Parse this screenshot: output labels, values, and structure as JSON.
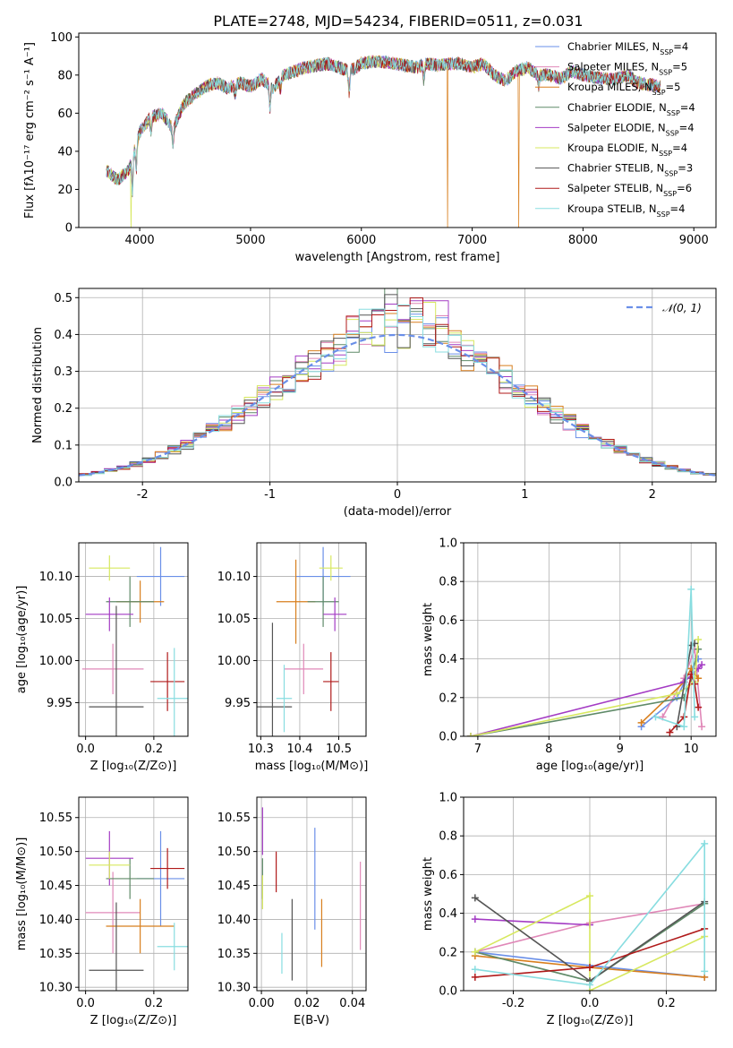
{
  "title": "PLATE=2748, MJD=54234, FIBERID=0511, z=0.031",
  "models": [
    {
      "name": "Chabrier MILES",
      "nssp": "4",
      "color": "#6a8fe8"
    },
    {
      "name": "Salpeter MILES",
      "nssp": "5",
      "color": "#e088b8"
    },
    {
      "name": "Kroupa MILES",
      "nssp": "5",
      "color": "#d87f1e"
    },
    {
      "name": "Chabrier ELODIE",
      "nssp": "4",
      "color": "#5f8a68"
    },
    {
      "name": "Salpeter ELODIE",
      "nssp": "4",
      "color": "#a43cc4"
    },
    {
      "name": "Kroupa ELODIE",
      "nssp": "4",
      "color": "#d7e85f"
    },
    {
      "name": "Chabrier STELIB",
      "nssp": "3",
      "color": "#555555"
    },
    {
      "name": "Salpeter STELIB",
      "nssp": "6",
      "color": "#b01a1a"
    },
    {
      "name": "Kroupa STELIB",
      "nssp": "4",
      "color": "#88dde0"
    }
  ],
  "legend_nssp_label": "N",
  "legend_nssp_sub": "SSP",
  "chart_data": [
    {
      "id": "spectrum",
      "type": "line",
      "xlabel": "wavelength [Angstrom, rest frame]",
      "ylabel": "Flux [fλ10⁻¹⁷ erg cm⁻² s⁻¹ A⁻¹]",
      "xlim": [
        3450,
        9200
      ],
      "ylim": [
        0,
        102
      ],
      "xticks": [
        4000,
        5000,
        6000,
        7000,
        8000,
        9000
      ],
      "yticks": [
        0,
        20,
        40,
        60,
        80,
        100
      ],
      "x_range_data": [
        3700,
        8700
      ],
      "continuum": [
        [
          3700,
          30
        ],
        [
          3800,
          25
        ],
        [
          3900,
          30
        ],
        [
          4000,
          50
        ],
        [
          4100,
          58
        ],
        [
          4200,
          60
        ],
        [
          4300,
          52
        ],
        [
          4400,
          65
        ],
        [
          4500,
          70
        ],
        [
          4600,
          74
        ],
        [
          4700,
          76
        ],
        [
          4800,
          73
        ],
        [
          4900,
          76
        ],
        [
          5000,
          74
        ],
        [
          5100,
          78
        ],
        [
          5200,
          73
        ],
        [
          5300,
          80
        ],
        [
          5400,
          82
        ],
        [
          5500,
          84
        ],
        [
          5600,
          85
        ],
        [
          5700,
          86
        ],
        [
          5800,
          84
        ],
        [
          5900,
          82
        ],
        [
          6000,
          86
        ],
        [
          6100,
          87
        ],
        [
          6200,
          87
        ],
        [
          6300,
          86
        ],
        [
          6400,
          85
        ],
        [
          6500,
          84
        ],
        [
          6600,
          86
        ],
        [
          6700,
          85
        ],
        [
          6800,
          86
        ],
        [
          6900,
          86
        ],
        [
          7000,
          84
        ],
        [
          7100,
          86
        ],
        [
          7200,
          80
        ],
        [
          7300,
          77
        ],
        [
          7400,
          82
        ],
        [
          7500,
          84
        ],
        [
          7600,
          80
        ],
        [
          7700,
          80
        ],
        [
          7800,
          78
        ],
        [
          7900,
          82
        ],
        [
          8000,
          80
        ],
        [
          8100,
          79
        ],
        [
          8200,
          78
        ],
        [
          8300,
          78
        ],
        [
          8400,
          80
        ],
        [
          8500,
          76
        ],
        [
          8600,
          75
        ],
        [
          8700,
          74
        ]
      ],
      "dropouts": [
        {
          "x": 3920,
          "model": "Kroupa ELODIE"
        },
        {
          "x": 6780,
          "model": "Kroupa MILES"
        },
        {
          "x": 7420,
          "model": "Kroupa MILES"
        }
      ]
    },
    {
      "id": "residuals",
      "type": "histogram",
      "xlabel": "(data-model)/error",
      "ylabel": "Normed distribution",
      "xlim": [
        -2.5,
        2.5
      ],
      "ylim": [
        0,
        0.525
      ],
      "xticks": [
        -2,
        -1,
        0,
        1,
        2
      ],
      "yticks": [
        0.0,
        0.1,
        0.2,
        0.3,
        0.4,
        0.5
      ],
      "bin_edges_start": -2.5,
      "bin_width": 0.1,
      "n_bins": 50,
      "reference_curve": {
        "label": "𝒩(0, 1)",
        "mean": 0,
        "sigma": 1,
        "color": "#6a8fe8"
      }
    },
    {
      "id": "age-vs-Z",
      "type": "errorbar",
      "xlabel": "Z [log₁₀(Z/Z⊙)]",
      "ylabel": "age  [log₁₀(age/yr)]",
      "xlim": [
        -0.02,
        0.3
      ],
      "ylim": [
        9.91,
        10.14
      ],
      "xticks": [
        0.0,
        0.2
      ],
      "yticks": [
        9.95,
        10.0,
        10.05,
        10.1
      ],
      "points": [
        {
          "model": "Chabrier MILES",
          "x": 0.22,
          "xerr": 0.07,
          "y": 10.1,
          "yerr": 0.035
        },
        {
          "model": "Salpeter MILES",
          "x": 0.08,
          "xerr": 0.09,
          "y": 9.99,
          "yerr": 0.03
        },
        {
          "model": "Kroupa MILES",
          "x": 0.16,
          "xerr": 0.07,
          "y": 10.07,
          "yerr": 0.025
        },
        {
          "model": "Chabrier ELODIE",
          "x": 0.13,
          "xerr": 0.07,
          "y": 10.07,
          "yerr": 0.03
        },
        {
          "model": "Salpeter ELODIE",
          "x": 0.07,
          "xerr": 0.07,
          "y": 10.055,
          "yerr": 0.02
        },
        {
          "model": "Kroupa ELODIE",
          "x": 0.07,
          "xerr": 0.06,
          "y": 10.11,
          "yerr": 0.015
        },
        {
          "model": "Chabrier STELIB",
          "x": 0.09,
          "xerr": 0.08,
          "y": 9.945,
          "yerr": 0.12
        },
        {
          "model": "Salpeter STELIB",
          "x": 0.24,
          "xerr": 0.05,
          "y": 9.975,
          "yerr": 0.035
        },
        {
          "model": "Kroupa STELIB",
          "x": 0.26,
          "xerr": 0.05,
          "y": 9.955,
          "yerr": 0.06
        }
      ]
    },
    {
      "id": "age-vs-mass",
      "type": "errorbar",
      "xlabel": "mass [log₁₀(M/M⊙)]",
      "ylabel": "",
      "xlim": [
        10.29,
        10.57
      ],
      "ylim": [
        9.91,
        10.14
      ],
      "xticks": [
        10.3,
        10.4,
        10.5
      ],
      "yticks": [
        9.95,
        10.0,
        10.05,
        10.1
      ],
      "points": [
        {
          "model": "Chabrier MILES",
          "x": 10.46,
          "xerr": 0.07,
          "y": 10.1,
          "yerr": 0.035
        },
        {
          "model": "Salpeter MILES",
          "x": 10.41,
          "xerr": 0.05,
          "y": 9.99,
          "yerr": 0.03
        },
        {
          "model": "Kroupa MILES",
          "x": 10.39,
          "xerr": 0.05,
          "y": 10.07,
          "yerr": 0.05
        },
        {
          "model": "Chabrier ELODIE",
          "x": 10.46,
          "xerr": 0.04,
          "y": 10.07,
          "yerr": 0.03
        },
        {
          "model": "Salpeter ELODIE",
          "x": 10.49,
          "xerr": 0.03,
          "y": 10.055,
          "yerr": 0.02
        },
        {
          "model": "Kroupa ELODIE",
          "x": 10.48,
          "xerr": 0.03,
          "y": 10.11,
          "yerr": 0.015
        },
        {
          "model": "Chabrier STELIB",
          "x": 10.33,
          "xerr": 0.05,
          "y": 9.945,
          "yerr": 0.1
        },
        {
          "model": "Salpeter STELIB",
          "x": 10.48,
          "xerr": 0.02,
          "y": 9.975,
          "yerr": 0.035
        },
        {
          "model": "Kroupa STELIB",
          "x": 10.36,
          "xerr": 0.02,
          "y": 9.955,
          "yerr": 0.04
        }
      ]
    },
    {
      "id": "weight-vs-age",
      "type": "line",
      "xlabel": "age  [log₁₀(age/yr)]",
      "ylabel": "mass weight",
      "xlim": [
        6.8,
        10.35
      ],
      "ylim": [
        0,
        1.0
      ],
      "xticks": [
        7,
        8,
        9,
        10
      ],
      "yticks": [
        0.0,
        0.2,
        0.4,
        0.6,
        0.8,
        1.0
      ],
      "series": [
        {
          "model": "Chabrier MILES",
          "x": [
            9.3,
            9.8,
            10.0,
            10.1
          ],
          "y": [
            0.05,
            0.2,
            0.35,
            0.4
          ]
        },
        {
          "model": "Salpeter MILES",
          "x": [
            9.6,
            9.9,
            10.05,
            10.15
          ],
          "y": [
            0.1,
            0.3,
            0.45,
            0.05
          ]
        },
        {
          "model": "Kroupa MILES",
          "x": [
            9.3,
            9.9,
            10.0,
            10.1
          ],
          "y": [
            0.07,
            0.28,
            0.35,
            0.3
          ]
        },
        {
          "model": "Chabrier ELODIE",
          "x": [
            6.9,
            9.9,
            10.0,
            10.1
          ],
          "y": [
            0.0,
            0.2,
            0.3,
            0.45
          ]
        },
        {
          "model": "Salpeter ELODIE",
          "x": [
            6.9,
            9.9,
            10.1,
            10.15
          ],
          "y": [
            0.0,
            0.28,
            0.35,
            0.37
          ]
        },
        {
          "model": "Kroupa ELODIE",
          "x": [
            6.9,
            9.8,
            10.05,
            10.1
          ],
          "y": [
            0.0,
            0.22,
            0.28,
            0.5
          ]
        },
        {
          "model": "Chabrier STELIB",
          "x": [
            9.8,
            10.0,
            10.05
          ],
          "y": [
            0.05,
            0.47,
            0.48
          ]
        },
        {
          "model": "Salpeter STELIB",
          "x": [
            9.7,
            9.9,
            10.0,
            10.05,
            10.1
          ],
          "y": [
            0.02,
            0.1,
            0.32,
            0.27,
            0.15
          ]
        },
        {
          "model": "Kroupa STELIB",
          "x": [
            9.5,
            9.9,
            10.0,
            10.05
          ],
          "y": [
            0.1,
            0.05,
            0.76,
            0.1
          ]
        }
      ]
    },
    {
      "id": "mass-vs-Z",
      "type": "errorbar",
      "xlabel": "Z [log₁₀(Z/Z⊙)]",
      "ylabel": "mass [log₁₀(M/M⊙)]",
      "xlim": [
        -0.02,
        0.3
      ],
      "ylim": [
        10.295,
        10.58
      ],
      "xticks": [
        0.0,
        0.2
      ],
      "yticks": [
        10.3,
        10.35,
        10.4,
        10.45,
        10.5,
        10.55
      ],
      "points": [
        {
          "model": "Chabrier MILES",
          "x": 0.22,
          "xerr": 0.07,
          "y": 10.46,
          "yerr": 0.07
        },
        {
          "model": "Salpeter MILES",
          "x": 0.08,
          "xerr": 0.08,
          "y": 10.41,
          "yerr": 0.06
        },
        {
          "model": "Kroupa MILES",
          "x": 0.16,
          "xerr": 0.1,
          "y": 10.39,
          "yerr": 0.04
        },
        {
          "model": "Chabrier ELODIE",
          "x": 0.13,
          "xerr": 0.07,
          "y": 10.46,
          "yerr": 0.03
        },
        {
          "model": "Salpeter ELODIE",
          "x": 0.07,
          "xerr": 0.07,
          "y": 10.49,
          "yerr": 0.04
        },
        {
          "model": "Kroupa ELODIE",
          "x": 0.07,
          "xerr": 0.06,
          "y": 10.48,
          "yerr": 0.02
        },
        {
          "model": "Chabrier STELIB",
          "x": 0.09,
          "xerr": 0.08,
          "y": 10.325,
          "yerr": 0.1
        },
        {
          "model": "Salpeter STELIB",
          "x": 0.24,
          "xerr": 0.05,
          "y": 10.475,
          "yerr": 0.03
        },
        {
          "model": "Kroupa STELIB",
          "x": 0.26,
          "xerr": 0.05,
          "y": 10.36,
          "yerr": 0.035
        }
      ]
    },
    {
      "id": "mass-vs-EBV",
      "type": "errorbar",
      "xlabel": "E(B-V)",
      "ylabel": "",
      "xlim": [
        -0.002,
        0.046
      ],
      "ylim": [
        10.295,
        10.58
      ],
      "xticks": [
        0.0,
        0.02,
        0.04
      ],
      "yticks": [
        10.3,
        10.35,
        10.4,
        10.45,
        10.5,
        10.55
      ],
      "points": [
        {
          "model": "Chabrier MILES",
          "x": 0.0235,
          "xerr": 0,
          "y": 10.46,
          "yerr": 0.075
        },
        {
          "model": "Salpeter MILES",
          "x": 0.0435,
          "xerr": 0,
          "y": 10.42,
          "yerr": 0.065
        },
        {
          "model": "Kroupa MILES",
          "x": 0.0265,
          "xerr": 0,
          "y": 10.38,
          "yerr": 0.05
        },
        {
          "model": "Chabrier ELODIE",
          "x": 0.0005,
          "xerr": 0,
          "y": 10.46,
          "yerr": 0.03
        },
        {
          "model": "Salpeter ELODIE",
          "x": 0.0005,
          "xerr": 0,
          "y": 10.53,
          "yerr": 0.035
        },
        {
          "model": "Kroupa ELODIE",
          "x": 0.0005,
          "xerr": 0,
          "y": 10.44,
          "yerr": 0.025
        },
        {
          "model": "Chabrier STELIB",
          "x": 0.0135,
          "xerr": 0,
          "y": 10.37,
          "yerr": 0.06
        },
        {
          "model": "Salpeter STELIB",
          "x": 0.0065,
          "xerr": 0,
          "y": 10.47,
          "yerr": 0.03
        },
        {
          "model": "Kroupa STELIB",
          "x": 0.009,
          "xerr": 0,
          "y": 10.35,
          "yerr": 0.03
        }
      ]
    },
    {
      "id": "weight-vs-Z",
      "type": "line",
      "xlabel": "Z [log₁₀(Z/Z⊙)]",
      "ylabel": "mass weight",
      "xlim": [
        -0.33,
        0.33
      ],
      "ylim": [
        0,
        1.0
      ],
      "xticks": [
        -0.2,
        0.0,
        0.2
      ],
      "yticks": [
        0.0,
        0.2,
        0.4,
        0.6,
        0.8,
        1.0
      ],
      "series": [
        {
          "model": "Chabrier MILES",
          "x": [
            -0.3,
            0.0,
            0.3
          ],
          "y": [
            0.2,
            0.13,
            0.07
          ]
        },
        {
          "model": "Salpeter MILES",
          "x": [
            -0.3,
            0.0,
            0.3
          ],
          "y": [
            0.2,
            0.35,
            0.45
          ]
        },
        {
          "model": "Kroupa MILES",
          "x": [
            -0.3,
            0.0,
            0.3
          ],
          "y": [
            0.18,
            0.12,
            0.07
          ]
        },
        {
          "model": "Chabrier ELODIE",
          "x": [
            -0.3,
            0.0,
            0.3
          ],
          "y": [
            0.2,
            0.05,
            0.45
          ]
        },
        {
          "model": "Salpeter ELODIE",
          "x": [
            -0.3,
            0.0
          ],
          "y": [
            0.37,
            0.34
          ]
        },
        {
          "model": "Kroupa ELODIE",
          "x": [
            -0.3,
            0.0,
            0.0,
            0.3
          ],
          "y": [
            0.2,
            0.49,
            0.0,
            0.28
          ]
        },
        {
          "model": "Chabrier STELIB",
          "x": [
            -0.3,
            0.0,
            0.3
          ],
          "y": [
            0.48,
            0.05,
            0.46
          ]
        },
        {
          "model": "Salpeter STELIB",
          "x": [
            -0.3,
            0.0,
            0.3
          ],
          "y": [
            0.07,
            0.12,
            0.32
          ]
        },
        {
          "model": "Kroupa STELIB",
          "x": [
            -0.3,
            0.0,
            0.3,
            0.3
          ],
          "y": [
            0.11,
            0.03,
            0.76,
            0.1
          ]
        }
      ]
    }
  ]
}
